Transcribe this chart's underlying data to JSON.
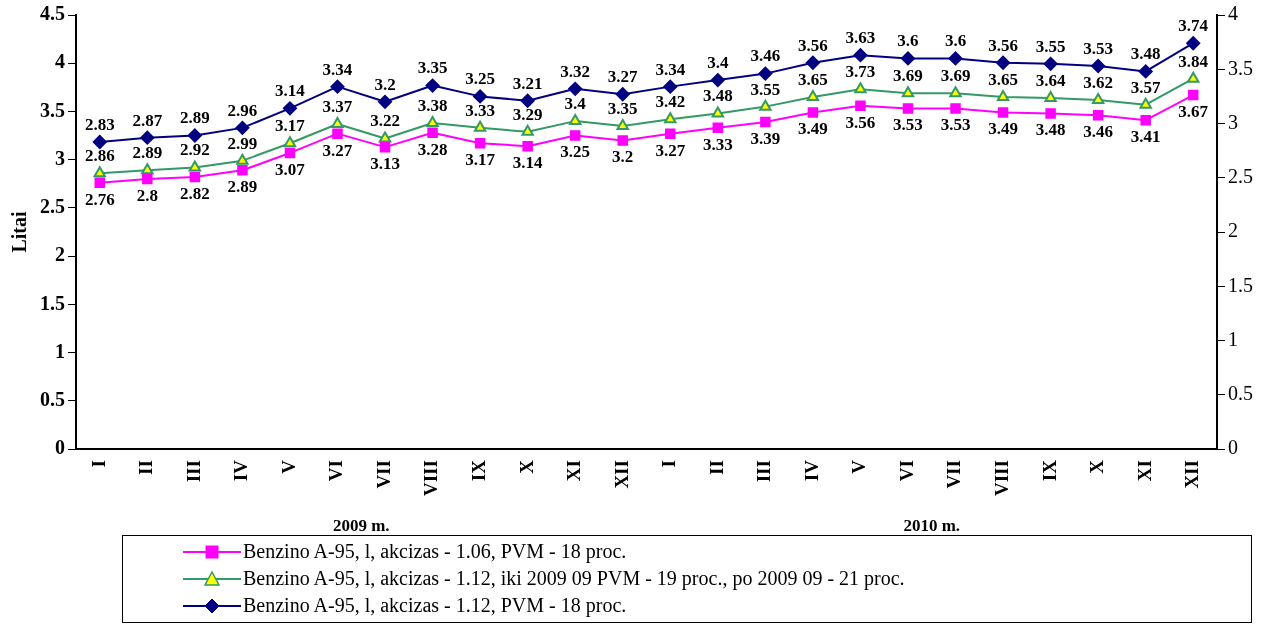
{
  "chart_data": {
    "type": "line",
    "ylabel": "Litai",
    "categories": [
      "I",
      "II",
      "III",
      "IV",
      "V",
      "VI",
      "VII",
      "VIII",
      "IX",
      "X",
      "XI",
      "XII",
      "I",
      "II",
      "III",
      "IV",
      "V",
      "VI",
      "VII",
      "VIII",
      "IX",
      "X",
      "XI",
      "XII"
    ],
    "series": [
      {
        "name": "Benzino A-95, l, akcizas - 1.06, PVM - 18 proc.",
        "color": "#ff00ff",
        "marker": "square",
        "values": [
          2.76,
          2.8,
          2.82,
          2.89,
          3.07,
          3.27,
          3.13,
          3.28,
          3.17,
          3.14,
          3.25,
          3.2,
          3.27,
          3.33,
          3.39,
          3.49,
          3.56,
          3.53,
          3.53,
          3.49,
          3.48,
          3.46,
          3.41,
          3.67
        ]
      },
      {
        "name": "Benzino A-95, l, akcizas - 1.12, iki 2009 09 PVM - 19 proc., po 2009 09 - 21 proc.",
        "color": "#339966",
        "marker": "triangle",
        "values": [
          2.86,
          2.89,
          2.92,
          2.99,
          3.17,
          3.37,
          3.22,
          3.38,
          3.33,
          3.29,
          3.4,
          3.35,
          3.42,
          3.48,
          3.55,
          3.65,
          3.73,
          3.69,
          3.69,
          3.65,
          3.64,
          3.62,
          3.57,
          3.84
        ]
      },
      {
        "name": "Benzino A-95, l, akcizas - 1.12, PVM - 18 proc.",
        "color": "#000080",
        "marker": "diamond",
        "axis": "y2",
        "values": [
          2.83,
          2.87,
          2.89,
          2.96,
          3.14,
          3.34,
          3.2,
          3.35,
          3.25,
          3.21,
          3.32,
          3.27,
          3.34,
          3.4,
          3.46,
          3.56,
          3.63,
          3.6,
          3.6,
          3.56,
          3.55,
          3.53,
          3.48,
          3.74
        ]
      }
    ],
    "ylim": [
      0,
      4.5
    ],
    "yticks": [
      0,
      0.5,
      1,
      1.5,
      2,
      2.5,
      3,
      3.5,
      4,
      4.5
    ],
    "y2lim": [
      0,
      4
    ],
    "y2ticks": [
      0,
      0.5,
      1,
      1.5,
      2,
      2.5,
      3,
      3.5,
      4
    ],
    "annotations": [
      "2009 m.",
      "2010 m."
    ],
    "data_labels": true,
    "grid": false,
    "legend": "bottom"
  }
}
